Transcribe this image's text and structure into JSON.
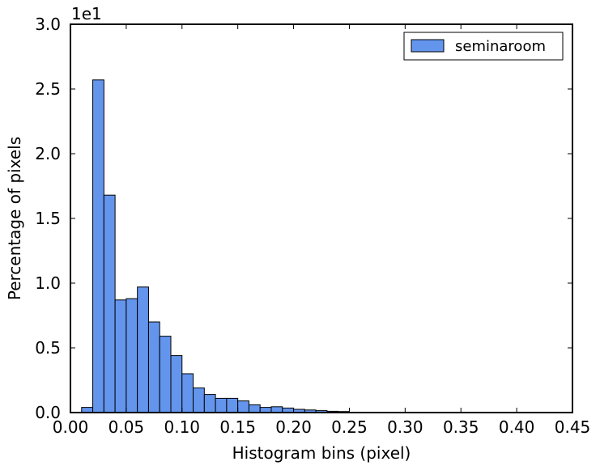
{
  "chart_data": {
    "type": "bar",
    "xlabel": "Histogram bins (pixel)",
    "ylabel": "Percentage of pixels",
    "y_offset_text": "1e1",
    "xlim": [
      0.0,
      0.45
    ],
    "ylim": [
      0.0,
      3.0
    ],
    "x_ticks": [
      "0.00",
      "0.05",
      "0.10",
      "0.15",
      "0.20",
      "0.25",
      "0.30",
      "0.35",
      "0.40",
      "0.45"
    ],
    "y_ticks": [
      "0.0",
      "0.5",
      "1.0",
      "1.5",
      "2.0",
      "2.5",
      "3.0"
    ],
    "legend_position": "top-right",
    "grid": false,
    "bin_width": 0.01,
    "series": [
      {
        "name": "seminaroom",
        "color": "#6495ED",
        "bin_starts": [
          0.01,
          0.02,
          0.03,
          0.04,
          0.05,
          0.06,
          0.07,
          0.08,
          0.09,
          0.1,
          0.11,
          0.12,
          0.13,
          0.14,
          0.15,
          0.16,
          0.17,
          0.18,
          0.19,
          0.2,
          0.21,
          0.22,
          0.23,
          0.24
        ],
        "values": [
          0.04,
          2.57,
          1.68,
          0.87,
          0.88,
          0.97,
          0.7,
          0.59,
          0.44,
          0.3,
          0.19,
          0.14,
          0.11,
          0.11,
          0.09,
          0.06,
          0.04,
          0.045,
          0.035,
          0.025,
          0.02,
          0.015,
          0.01,
          0.008
        ]
      }
    ]
  }
}
